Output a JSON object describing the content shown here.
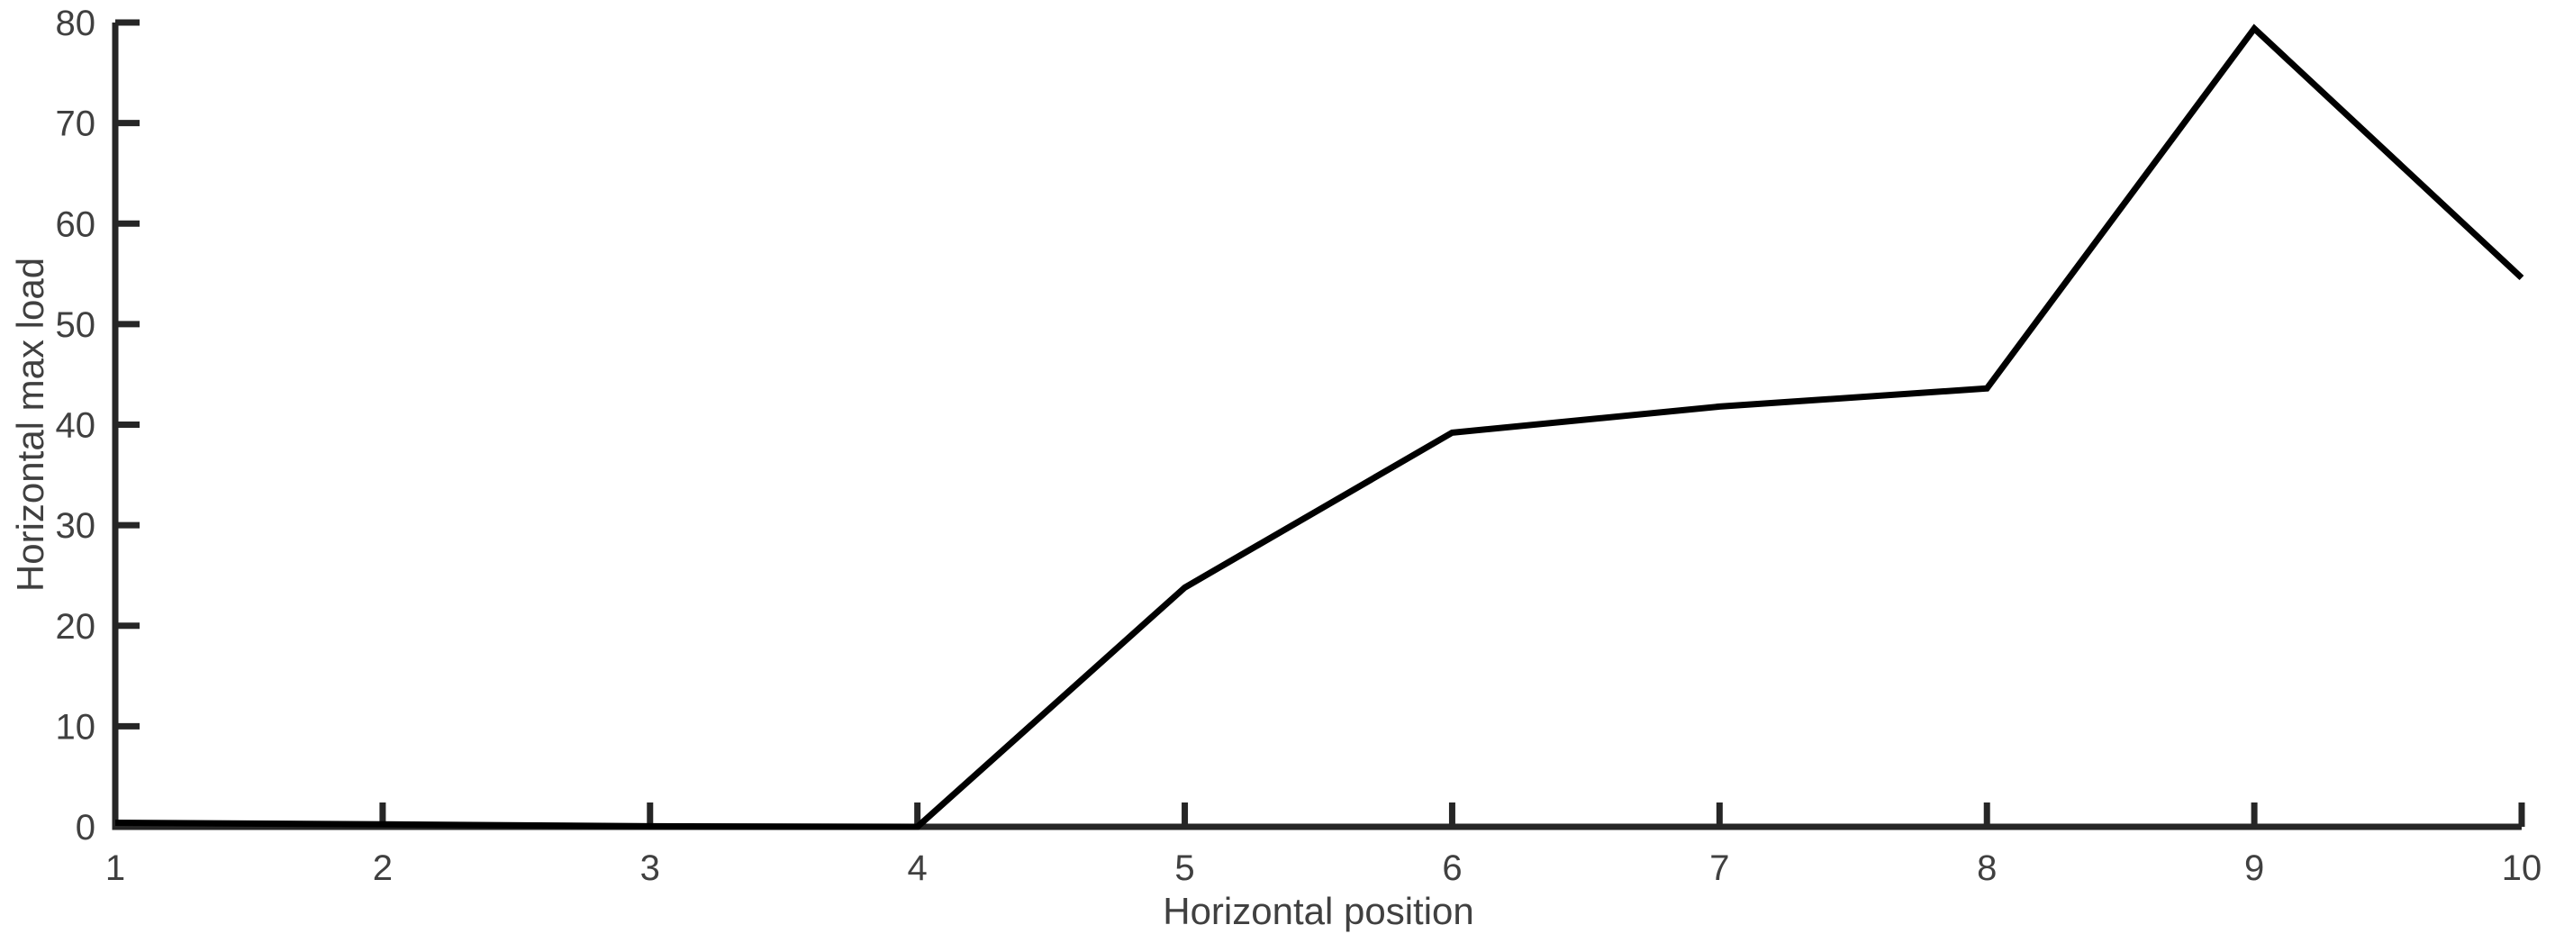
{
  "figure": {
    "background_color": "#ffffff"
  },
  "chart_data": {
    "type": "line",
    "xlabel": "Horizontal position",
    "ylabel": "Horizontal max load",
    "x": [
      1,
      2,
      3,
      4,
      5,
      6,
      7,
      8,
      9,
      10
    ],
    "y": [
      0.4,
      0.25,
      0.05,
      0,
      23.8,
      39.2,
      41.8,
      43.6,
      79.4,
      54.6
    ],
    "xlim": [
      1,
      10
    ],
    "ylim": [
      0,
      80
    ],
    "xticks": [
      "1",
      "2",
      "3",
      "4",
      "5",
      "6",
      "7",
      "8",
      "9",
      "10"
    ],
    "xtick_values": [
      1,
      2,
      3,
      4,
      5,
      6,
      7,
      8,
      9,
      10
    ],
    "yticks": [
      "0",
      "10",
      "20",
      "30",
      "40",
      "50",
      "60",
      "70",
      "80"
    ],
    "ytick_values": [
      0,
      10,
      20,
      30,
      40,
      50,
      60,
      70,
      80
    ],
    "grid": false,
    "legend_position": "none",
    "line_color": "#000000",
    "axis_color": "#262626",
    "text_color": "#404040"
  }
}
